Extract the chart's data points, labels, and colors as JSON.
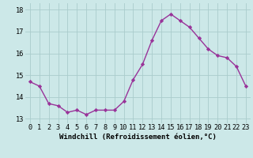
{
  "x": [
    0,
    1,
    2,
    3,
    4,
    5,
    6,
    7,
    8,
    9,
    10,
    11,
    12,
    13,
    14,
    15,
    16,
    17,
    18,
    19,
    20,
    21,
    22,
    23
  ],
  "y": [
    14.7,
    14.5,
    13.7,
    13.6,
    13.3,
    13.4,
    13.2,
    13.4,
    13.4,
    13.4,
    13.8,
    14.8,
    15.5,
    16.6,
    17.5,
    17.8,
    17.5,
    17.2,
    16.7,
    16.2,
    15.9,
    15.8,
    15.4,
    14.5
  ],
  "line_color": "#993399",
  "marker": "D",
  "marker_size": 2.2,
  "linewidth": 1.0,
  "xlabel": "Windchill (Refroidissement éolien,°C)",
  "xlabel_fontsize": 6.5,
  "xtick_labels": [
    "0",
    "1",
    "2",
    "3",
    "4",
    "5",
    "6",
    "7",
    "8",
    "9",
    "10",
    "11",
    "12",
    "13",
    "14",
    "15",
    "16",
    "17",
    "18",
    "19",
    "20",
    "21",
    "22",
    "23"
  ],
  "ytick_values": [
    13,
    14,
    15,
    16,
    17,
    18
  ],
  "ylim": [
    12.8,
    18.3
  ],
  "xlim": [
    -0.5,
    23.5
  ],
  "background_color": "#cce8e8",
  "grid_color": "#aacccc",
  "tick_fontsize": 6.2,
  "title": ""
}
